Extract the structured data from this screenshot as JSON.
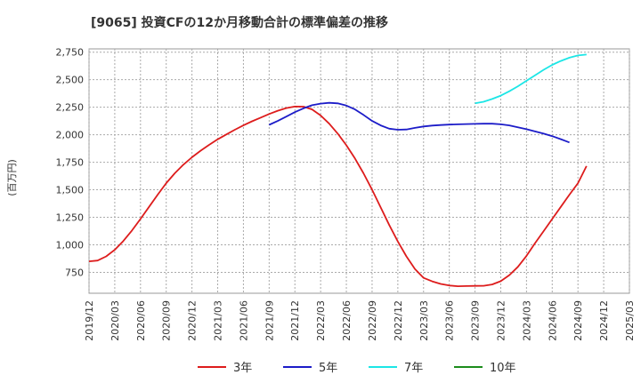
{
  "chart_data": {
    "type": "line",
    "title": "[9065]  投資CFの12か月移動合計の標準偏差の推移",
    "ylabel": "(百万円)",
    "xlabel": "",
    "ylim": [
      560,
      2780
    ],
    "yticks": [
      750,
      1000,
      1250,
      1500,
      1750,
      2000,
      2250,
      2500,
      2750
    ],
    "ytick_labels": [
      "750",
      "1,000",
      "1,250",
      "1,500",
      "1,750",
      "2,000",
      "2,250",
      "2,500",
      "2,750"
    ],
    "xticks": [
      "2019/12",
      "2020/03",
      "2020/06",
      "2020/09",
      "2020/12",
      "2021/03",
      "2021/06",
      "2021/09",
      "2021/12",
      "2022/03",
      "2022/06",
      "2022/09",
      "2022/12",
      "2023/03",
      "2023/06",
      "2023/09",
      "2023/12",
      "2024/03",
      "2024/06",
      "2024/09",
      "2024/12",
      "2025/03"
    ],
    "grid": true,
    "legend_position": "bottom",
    "series": [
      {
        "name": "3年",
        "color": "#dd1c1c",
        "points": [
          [
            "2019/12",
            850
          ],
          [
            "2020/01",
            857
          ],
          [
            "2020/02",
            895
          ],
          [
            "2020/03",
            955
          ],
          [
            "2020/04",
            1035
          ],
          [
            "2020/05",
            1130
          ],
          [
            "2020/06",
            1235
          ],
          [
            "2020/07",
            1345
          ],
          [
            "2020/08",
            1455
          ],
          [
            "2020/09",
            1560
          ],
          [
            "2020/10",
            1650
          ],
          [
            "2020/11",
            1728
          ],
          [
            "2020/12",
            1795
          ],
          [
            "2021/01",
            1855
          ],
          [
            "2021/02",
            1908
          ],
          [
            "2021/03",
            1958
          ],
          [
            "2021/04",
            2003
          ],
          [
            "2021/05",
            2045
          ],
          [
            "2021/06",
            2085
          ],
          [
            "2021/07",
            2122
          ],
          [
            "2021/08",
            2155
          ],
          [
            "2021/09",
            2188
          ],
          [
            "2021/10",
            2218
          ],
          [
            "2021/11",
            2242
          ],
          [
            "2021/12",
            2256
          ],
          [
            "2022/01",
            2255
          ],
          [
            "2022/02",
            2230
          ],
          [
            "2022/03",
            2175
          ],
          [
            "2022/04",
            2100
          ],
          [
            "2022/05",
            2010
          ],
          [
            "2022/06",
            1905
          ],
          [
            "2022/07",
            1785
          ],
          [
            "2022/08",
            1650
          ],
          [
            "2022/09",
            1500
          ],
          [
            "2022/10",
            1340
          ],
          [
            "2022/11",
            1180
          ],
          [
            "2022/12",
            1030
          ],
          [
            "2023/01",
            895
          ],
          [
            "2023/02",
            780
          ],
          [
            "2023/03",
            700
          ],
          [
            "2023/04",
            668
          ],
          [
            "2023/05",
            645
          ],
          [
            "2023/06",
            630
          ],
          [
            "2023/07",
            624
          ],
          [
            "2023/08",
            625
          ],
          [
            "2023/09",
            627
          ],
          [
            "2023/10",
            628
          ],
          [
            "2023/11",
            640
          ],
          [
            "2023/12",
            670
          ],
          [
            "2024/01",
            725
          ],
          [
            "2024/02",
            800
          ],
          [
            "2024/03",
            900
          ],
          [
            "2024/04",
            1015
          ],
          [
            "2024/05",
            1125
          ],
          [
            "2024/06",
            1235
          ],
          [
            "2024/07",
            1345
          ],
          [
            "2024/08",
            1455
          ],
          [
            "2024/09",
            1560
          ],
          [
            "2024/10",
            1715
          ]
        ]
      },
      {
        "name": "5年",
        "color": "#1c1cc8",
        "points": [
          [
            "2021/09",
            2090
          ],
          [
            "2021/10",
            2125
          ],
          [
            "2021/11",
            2165
          ],
          [
            "2021/12",
            2205
          ],
          [
            "2022/01",
            2240
          ],
          [
            "2022/02",
            2268
          ],
          [
            "2022/03",
            2283
          ],
          [
            "2022/04",
            2290
          ],
          [
            "2022/05",
            2285
          ],
          [
            "2022/06",
            2265
          ],
          [
            "2022/07",
            2230
          ],
          [
            "2022/08",
            2180
          ],
          [
            "2022/09",
            2125
          ],
          [
            "2022/10",
            2085
          ],
          [
            "2022/11",
            2055
          ],
          [
            "2022/12",
            2045
          ],
          [
            "2023/01",
            2048
          ],
          [
            "2023/02",
            2062
          ],
          [
            "2023/03",
            2075
          ],
          [
            "2023/04",
            2083
          ],
          [
            "2023/05",
            2088
          ],
          [
            "2023/06",
            2092
          ],
          [
            "2023/07",
            2095
          ],
          [
            "2023/08",
            2097
          ],
          [
            "2023/09",
            2099
          ],
          [
            "2023/10",
            2100
          ],
          [
            "2023/11",
            2100
          ],
          [
            "2023/12",
            2095
          ],
          [
            "2024/01",
            2085
          ],
          [
            "2024/02",
            2068
          ],
          [
            "2024/03",
            2050
          ],
          [
            "2024/04",
            2030
          ],
          [
            "2024/05",
            2010
          ],
          [
            "2024/06",
            1987
          ],
          [
            "2024/07",
            1960
          ],
          [
            "2024/08",
            1930
          ]
        ]
      },
      {
        "name": "7年",
        "color": "#1ce6e6",
        "points": [
          [
            "2023/09",
            2285
          ],
          [
            "2023/10",
            2300
          ],
          [
            "2023/11",
            2325
          ],
          [
            "2023/12",
            2355
          ],
          [
            "2024/01",
            2395
          ],
          [
            "2024/02",
            2440
          ],
          [
            "2024/03",
            2490
          ],
          [
            "2024/04",
            2540
          ],
          [
            "2024/05",
            2590
          ],
          [
            "2024/06",
            2635
          ],
          [
            "2024/07",
            2670
          ],
          [
            "2024/08",
            2700
          ],
          [
            "2024/09",
            2720
          ],
          [
            "2024/10",
            2728
          ]
        ]
      },
      {
        "name": "10年",
        "color": "#1c8c1c",
        "points": []
      }
    ]
  }
}
